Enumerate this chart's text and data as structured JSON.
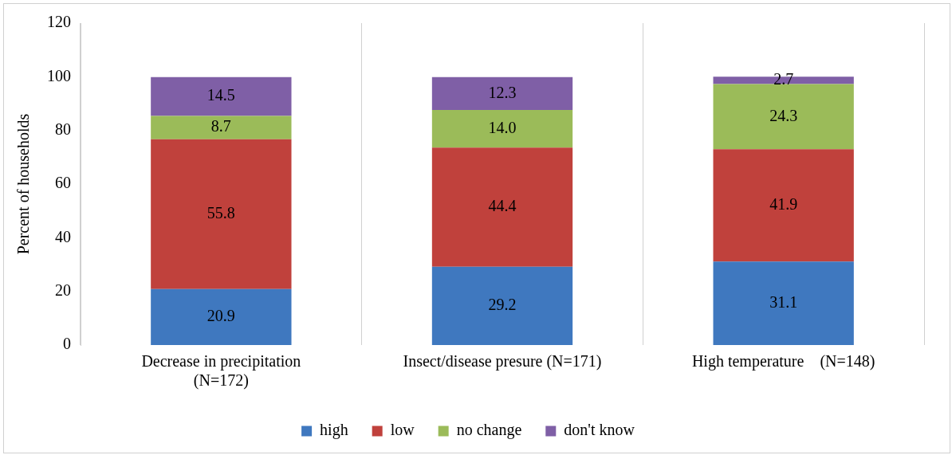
{
  "chart_data": {
    "type": "bar",
    "stacked": true,
    "ylabel": "Percent of households",
    "categories": [
      "Decrease in precipitation (N=172)",
      "Insect/disease presure (N=171)",
      "High temperature    (N=148)"
    ],
    "series": [
      {
        "name": "high",
        "color": "#3f78bf",
        "values": [
          20.9,
          29.2,
          31.1
        ],
        "value_labels": [
          "20.9",
          "29.2",
          "31.1"
        ]
      },
      {
        "name": "low",
        "color": "#c0413c",
        "values": [
          55.8,
          44.4,
          41.9
        ],
        "value_labels": [
          "55.8",
          "44.4",
          "41.9"
        ]
      },
      {
        "name": "no change",
        "color": "#9bbb59",
        "values": [
          8.7,
          14.0,
          24.3
        ],
        "value_labels": [
          "8.7",
          "14.0",
          "24.3"
        ]
      },
      {
        "name": "don't know",
        "color": "#7f5fa6",
        "values": [
          14.5,
          12.3,
          2.7
        ],
        "value_labels": [
          "14.5",
          "12.3",
          "2.7"
        ]
      }
    ],
    "ylim": [
      0,
      120
    ],
    "yticks": [
      0,
      20,
      40,
      60,
      80,
      100,
      120
    ],
    "grid": "x",
    "legend": "bottom"
  }
}
